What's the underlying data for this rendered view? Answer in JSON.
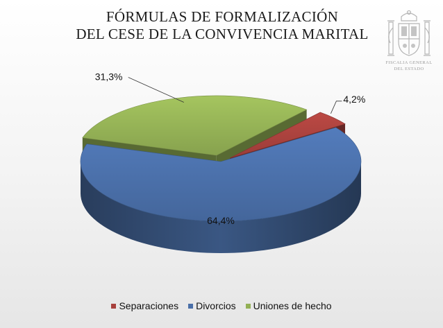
{
  "title": {
    "line1": "FÓRMULAS DE FORMALIZACIÓN",
    "line2": "DEL CESE DE LA CONVIVENCIA MARITAL"
  },
  "logo": {
    "caption_line1": "FISCALIA GENERAL",
    "caption_line2": "DEL ESTADO"
  },
  "chart_data": {
    "type": "pie",
    "style": "3d",
    "legend_position": "bottom",
    "labels": [
      "Separaciones",
      "Divorcios",
      "Uniones de hecho"
    ],
    "values": [
      4.2,
      64.4,
      31.3
    ],
    "value_labels": [
      "4,2%",
      "64,4%",
      "31,3%"
    ],
    "colors": [
      "#a8413d",
      "#4a6fa8",
      "#93b055"
    ],
    "exploded": [
      "Separaciones",
      "Uniones de hecho"
    ]
  }
}
